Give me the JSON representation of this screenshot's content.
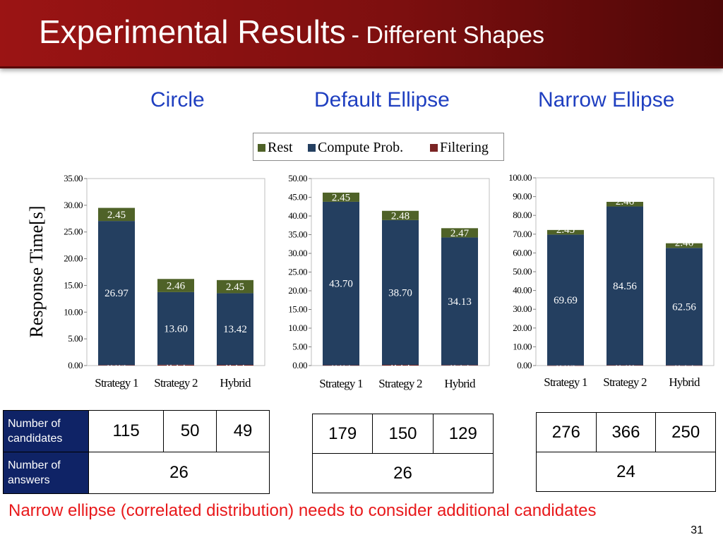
{
  "slide": {
    "title_main": "Experimental Results",
    "title_sub": "- Different Shapes",
    "note": "Narrow ellipse (correlated distribution) needs to consider additional candidates",
    "page_number": "31"
  },
  "chart_titles": [
    "Circle",
    "Default Ellipse",
    "Narrow Ellipse"
  ],
  "chart_data": [
    {
      "type": "bar",
      "title": "Circle",
      "ylabel": "Response Time[s]",
      "categories": [
        "Strategy 1",
        "Strategy 2",
        "Hybrid"
      ],
      "ylim": [
        0,
        35
      ],
      "tick_step": 5,
      "series": [
        {
          "name": "Filtering",
          "color": "#7a2424",
          "values": [
            0.09,
            0.15,
            0.13
          ]
        },
        {
          "name": "Compute Prob.",
          "color": "#243f60",
          "values": [
            26.97,
            13.6,
            13.42
          ]
        },
        {
          "name": "Rest",
          "color": "#4f6228",
          "values": [
            2.45,
            2.46,
            2.45
          ]
        }
      ]
    },
    {
      "type": "bar",
      "title": "Default Ellipse",
      "categories": [
        "Strategy 1",
        "Strategy 2",
        "Hybrid"
      ],
      "ylim": [
        0,
        50
      ],
      "tick_step": 5,
      "series": [
        {
          "name": "Filtering",
          "color": "#7a2424",
          "values": [
            0.09,
            0.19,
            0.13
          ]
        },
        {
          "name": "Compute Prob.",
          "color": "#243f60",
          "values": [
            43.7,
            38.7,
            34.13
          ]
        },
        {
          "name": "Rest",
          "color": "#4f6228",
          "values": [
            2.45,
            2.48,
            2.47
          ]
        }
      ]
    },
    {
      "type": "bar",
      "title": "Narrow Ellipse",
      "categories": [
        "Strategy 1",
        "Strategy 2",
        "Hybrid"
      ],
      "ylim": [
        0,
        100
      ],
      "tick_step": 10,
      "series": [
        {
          "name": "Filtering",
          "color": "#7a2424",
          "values": [
            0.09,
            0.2,
            0.13
          ]
        },
        {
          "name": "Compute Prob.",
          "color": "#243f60",
          "values": [
            69.69,
            84.56,
            62.56
          ]
        },
        {
          "name": "Rest",
          "color": "#4f6228",
          "values": [
            2.45,
            2.46,
            2.46
          ]
        }
      ]
    }
  ],
  "legend": [
    {
      "name": "Rest",
      "color": "#4f6228"
    },
    {
      "name": "Compute Prob.",
      "color": "#243f60"
    },
    {
      "name": "Filtering",
      "color": "#7a2424"
    }
  ],
  "tables": {
    "row_labels": [
      "Number of candidates",
      "Number of answers"
    ],
    "circle": {
      "candidates": [
        "115",
        "50",
        "49"
      ],
      "answers": "26"
    },
    "default_ellipse": {
      "candidates": [
        "179",
        "150",
        "129"
      ],
      "answers": "26"
    },
    "narrow_ellipse": {
      "candidates": [
        "276",
        "366",
        "250"
      ],
      "answers": "24"
    }
  }
}
